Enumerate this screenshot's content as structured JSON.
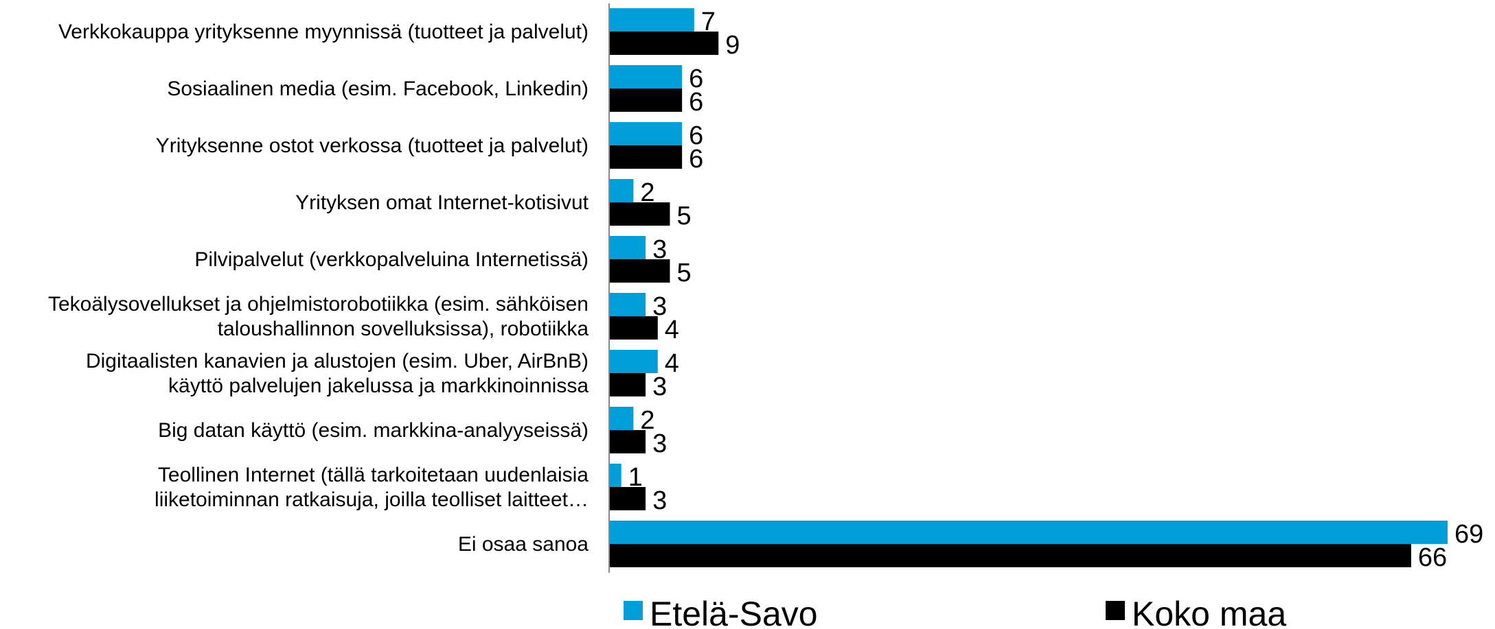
{
  "chart_data": {
    "type": "bar",
    "orientation": "horizontal",
    "categories": [
      [
        "Verkkokauppa yrityksenne myynnissä (tuotteet ja palvelut)"
      ],
      [
        "Sosiaalinen media (esim. Facebook, Linkedin)"
      ],
      [
        "Yrityksenne ostot verkossa (tuotteet ja palvelut)"
      ],
      [
        "Yrityksen omat Internet-kotisivut"
      ],
      [
        "Pilvipalvelut  (verkkopalveluina Internetissä)"
      ],
      [
        "Tekoälysovellukset ja ohjelmistorobotiikka (esim. sähköisen",
        "taloushallinnon sovelluksissa), robotiikka"
      ],
      [
        "Digitaalisten kanavien ja alustojen (esim. Uber, AirBnB)",
        "käyttö palvelujen jakelussa ja markkinoinnissa"
      ],
      [
        "Big datan käyttö (esim. markkina-analyyseissä)"
      ],
      [
        "Teollinen Internet (tällä tarkoitetaan uudenlaisia",
        "liiketoiminnan ratkaisuja, joilla teolliset laitteet…"
      ],
      [
        "Ei osaa sanoa"
      ]
    ],
    "series": [
      {
        "name": "Etelä-Savo",
        "color": "#009fda",
        "values": [
          7,
          6,
          6,
          2,
          3,
          3,
          4,
          2,
          1,
          69
        ]
      },
      {
        "name": "Koko maa",
        "color": "#000000",
        "values": [
          9,
          6,
          6,
          5,
          5,
          4,
          3,
          3,
          3,
          66
        ]
      }
    ],
    "xlim": [
      0,
      69
    ],
    "grid": false,
    "legend_position": "bottom"
  }
}
